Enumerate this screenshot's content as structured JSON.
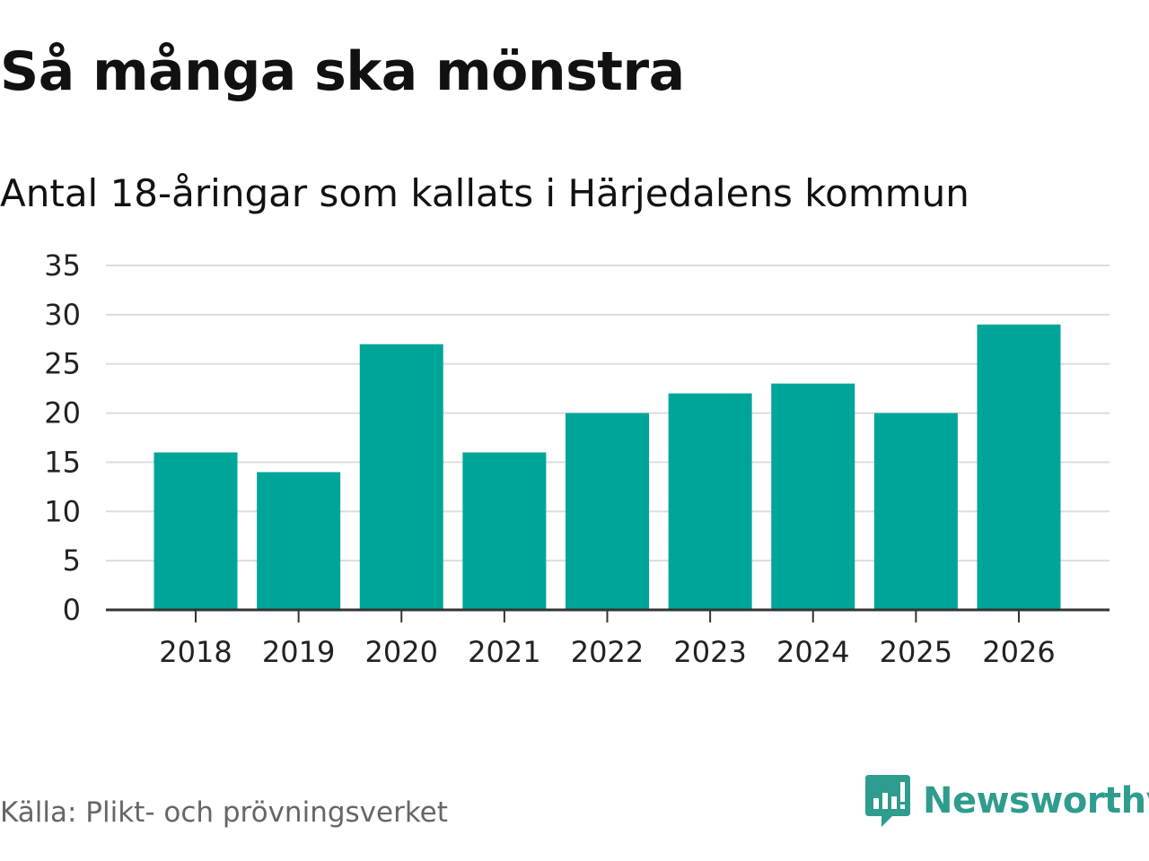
{
  "header": {
    "title": "Så många ska mönstra",
    "subtitle": "Antal 18-åringar som kallats i Härjedalens kommun"
  },
  "footer": {
    "source": "Källa: Plikt- och prövningsverket",
    "brand": "Newsworthy",
    "brand_icon": "newsworthy-logo-icon"
  },
  "colors": {
    "bar": "#00a59a",
    "grid": "#dddddd",
    "axis": "#333333",
    "brand": "#2e9c8e"
  },
  "chart_data": {
    "type": "bar",
    "title": "Så många ska mönstra",
    "subtitle": "Antal 18-åringar som kallats i Härjedalens kommun",
    "categories": [
      "2018",
      "2019",
      "2020",
      "2021",
      "2022",
      "2023",
      "2024",
      "2025",
      "2026"
    ],
    "values": [
      16,
      14,
      27,
      16,
      20,
      22,
      23,
      20,
      29
    ],
    "xlabel": "",
    "ylabel": "",
    "ylim": [
      0,
      35
    ],
    "yticks": [
      0,
      5,
      10,
      15,
      20,
      25,
      30,
      35
    ],
    "grid": true,
    "legend": "none"
  }
}
